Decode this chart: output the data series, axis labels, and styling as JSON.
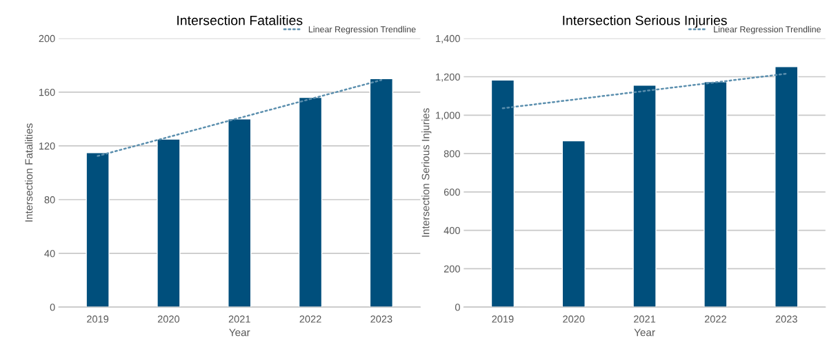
{
  "chart_data": [
    {
      "type": "bar",
      "title": "Intersection Fatalities",
      "xlabel": "Year",
      "ylabel": "Intersection Fatalities",
      "categories": [
        "2019",
        "2020",
        "2021",
        "2022",
        "2023"
      ],
      "ylim": [
        0,
        200
      ],
      "yticks": [
        0,
        40,
        80,
        120,
        160,
        200
      ],
      "grid": "y",
      "legend": "top right",
      "series": [
        {
          "color": "#004f7c",
          "values": [
            115,
            125,
            140,
            156,
            170
          ]
        },
        {
          "type": "line",
          "name": "Linear Regression Trendline",
          "color": "#5b8fae",
          "line_style": "dotted",
          "values": [
            112.5,
            126.6,
            140.8,
            154.9,
            169
          ]
        }
      ]
    },
    {
      "type": "bar",
      "title": "Intersection Serious Injuries",
      "xlabel": "Year",
      "ylabel": "Intersection Serious Injuries",
      "categories": [
        "2019",
        "2020",
        "2021",
        "2022",
        "2023"
      ],
      "ylim": [
        0,
        1400
      ],
      "yticks": [
        0,
        200,
        400,
        600,
        800,
        {
          "value": 1000,
          "label": "1,000"
        },
        {
          "value": 1200,
          "label": "1,200"
        },
        {
          "value": 1400,
          "label": "1,400"
        }
      ],
      "grid": "y",
      "legend": "top right",
      "series": [
        {
          "color": "#004f7c",
          "values": [
            1183,
            866,
            1156,
            1174,
            1253
          ]
        },
        {
          "type": "line",
          "name": "Linear Regression Trendline",
          "color": "#5b8fae",
          "line_style": "dotted",
          "values": [
            1036,
            1081,
            1126,
            1171,
            1216
          ]
        }
      ]
    }
  ]
}
